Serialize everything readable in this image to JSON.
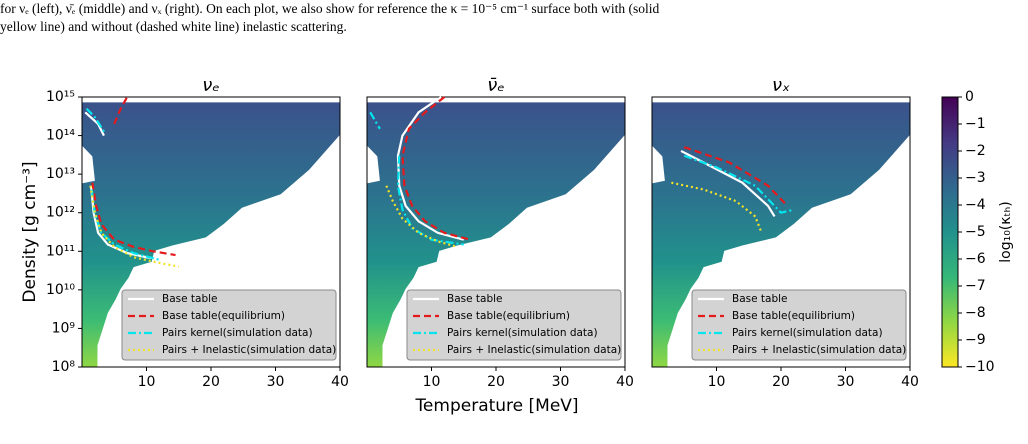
{
  "caption": [
    "for νₑ (left), ν̄ₑ (middle) and νₓ (right). On each plot, we also show for reference the κ = 10⁻⁵ cm⁻¹ surface both with (solid",
    "yellow line) and without (dashed white line) inelastic scattering."
  ],
  "figure": {
    "xlabel": "Temperature [MeV]",
    "ylabel": "Density [g cm⁻³]",
    "colorbar": {
      "label": "log₁₀(κₜₕ)",
      "lim": [
        -10,
        0
      ],
      "ticks": [
        0,
        {
          "value": -1,
          "label": "−1"
        },
        {
          "value": -2,
          "label": "−2"
        },
        {
          "value": -3,
          "label": "−3"
        },
        {
          "value": -4,
          "label": "−4"
        },
        {
          "value": -5,
          "label": "−5"
        },
        {
          "value": -6,
          "label": "−6"
        },
        {
          "value": -7,
          "label": "−7"
        },
        {
          "value": -8,
          "label": "−8"
        },
        {
          "value": -9,
          "label": "−9"
        },
        {
          "value": -10,
          "label": "−10"
        }
      ],
      "colors": [
        "#fde725",
        "#90d743",
        "#35b779",
        "#21918c",
        "#31688e",
        "#443983",
        "#440154"
      ]
    }
  },
  "chart_data": [
    {
      "type": "line",
      "title": "νₑ",
      "xlim": [
        0,
        40
      ],
      "xticks": [
        10,
        20,
        30,
        40
      ],
      "ylim": [
        100000000.0,
        1000000000000000.0
      ],
      "yscale": "log",
      "yticks": [
        {
          "value": 100000000.0,
          "label": "10⁸"
        },
        {
          "value": 1000000000.0,
          "label": "10⁹"
        },
        {
          "value": 10000000000.0,
          "label": "10¹⁰"
        },
        {
          "value": 100000000000.0,
          "label": "10¹¹"
        },
        {
          "value": 1000000000000.0,
          "label": "10¹²"
        },
        {
          "value": 10000000000000.0,
          "label": "10¹³"
        },
        {
          "value": 100000000000000.0,
          "label": "10¹⁴"
        },
        {
          "value": 1000000000000000.0,
          "label": "10¹⁵"
        }
      ],
      "series": [
        {
          "name": "Base table",
          "color": "#ffffff",
          "style": "solid",
          "x": [
            0.5,
            2.5,
            3.4,
            null,
            1.4,
            1.8,
            2.5,
            4,
            7,
            10,
            13
          ],
          "values": [
            400000000000000.0,
            200000000000000.0,
            100000000000000.0,
            null,
            5000000000000.0,
            1000000000000.0,
            300000000000.0,
            150000000000.0,
            90000000000.0,
            70000000000.0,
            60000000000.0
          ]
        },
        {
          "name": "Base table(equilibrium)",
          "color": "#e41a1c",
          "style": "dashed",
          "x": [
            5,
            6,
            7,
            null,
            1.6,
            2.2,
            3,
            5,
            8,
            11,
            14.5
          ],
          "values": [
            200000000000000.0,
            500000000000000.0,
            1000000000000000.0,
            null,
            6000000000000.0,
            1500000000000.0,
            500000000000.0,
            200000000000.0,
            130000000000.0,
            100000000000.0,
            80000000000.0
          ]
        },
        {
          "name": "Pairs kernel(simulation data)",
          "color": "#00e5ee",
          "style": "dashdot",
          "x": [
            0.7,
            2,
            3.5,
            null,
            1.5,
            2,
            3,
            5,
            8,
            12
          ],
          "values": [
            500000000000000.0,
            300000000000000.0,
            120000000000000.0,
            null,
            4000000000000.0,
            900000000000.0,
            300000000000.0,
            150000000000.0,
            90000000000.0,
            60000000000.0
          ]
        },
        {
          "name": "Pairs + Inelastic(simulation data)",
          "color": "#f2e227",
          "style": "dotted",
          "x": [
            1.3,
            2,
            3,
            5,
            8,
            12,
            15
          ],
          "values": [
            5000000000000.0,
            1000000000000.0,
            300000000000.0,
            130000000000.0,
            70000000000.0,
            50000000000.0,
            40000000000.0
          ]
        }
      ]
    },
    {
      "type": "line",
      "title": "ν̄ₑ",
      "xlim": [
        0,
        40
      ],
      "xticks": [
        10,
        20,
        30,
        40
      ],
      "ylim": [
        100000000.0,
        1000000000000000.0
      ],
      "yscale": "log",
      "series": [
        {
          "name": "Base table",
          "color": "#ffffff",
          "style": "solid",
          "x": [
            11.5,
            8,
            5.5,
            4.8,
            5,
            6,
            8,
            11,
            15
          ],
          "values": [
            1000000000000000.0,
            400000000000000.0,
            100000000000000.0,
            30000000000000.0,
            5000000000000.0,
            1500000000000.0,
            600000000000.0,
            300000000000.0,
            200000000000.0
          ]
        },
        {
          "name": "Base table(equilibrium)",
          "color": "#e41a1c",
          "style": "dashed",
          "x": [
            12,
            9,
            6.5,
            5.5,
            5.8,
            7,
            9,
            12,
            16
          ],
          "values": [
            1000000000000000.0,
            400000000000000.0,
            150000000000000.0,
            30000000000000.0,
            5000000000000.0,
            1500000000000.0,
            600000000000.0,
            300000000000.0,
            200000000000.0
          ]
        },
        {
          "name": "Pairs kernel(simulation data)",
          "color": "#00e5ee",
          "style": "dashdot",
          "x": [
            0.5,
            2,
            null,
            5,
            4.8,
            5.5,
            7,
            10,
            15
          ],
          "values": [
            400000000000000.0,
            150000000000000.0,
            null,
            30000000000000.0,
            5000000000000.0,
            1200000000000.0,
            400000000000.0,
            200000000000.0,
            150000000000.0
          ]
        },
        {
          "name": "Pairs + Inelastic(simulation data)",
          "color": "#f2e227",
          "style": "dotted",
          "x": [
            3,
            4,
            5.5,
            8,
            11,
            14
          ],
          "values": [
            5000000000000.0,
            2000000000000.0,
            700000000000.0,
            300000000000.0,
            180000000000.0,
            130000000000.0
          ]
        }
      ]
    },
    {
      "type": "line",
      "title": "νₓ",
      "xlim": [
        0,
        40
      ],
      "xticks": [
        10,
        20,
        30,
        40
      ],
      "ylim": [
        100000000.0,
        1000000000000000.0
      ],
      "yscale": "log",
      "series": [
        {
          "name": "Base table",
          "color": "#ffffff",
          "style": "solid",
          "x": [
            4.5,
            8,
            14,
            18,
            19
          ],
          "values": [
            40000000000000.0,
            20000000000000.0,
            6000000000000.0,
            1500000000000.0,
            800000000000.0
          ]
        },
        {
          "name": "Base table(equilibrium)",
          "color": "#e41a1c",
          "style": "dashed",
          "x": [
            5,
            12,
            18,
            21
          ],
          "values": [
            50000000000000.0,
            20000000000000.0,
            5000000000000.0,
            1500000000000.0
          ]
        },
        {
          "name": "Pairs kernel(simulation data)",
          "color": "#00e5ee",
          "style": "dashdot",
          "x": [
            5,
            10,
            16,
            20,
            22
          ],
          "values": [
            30000000000000.0,
            15000000000000.0,
            5000000000000.0,
            1000000000000.0,
            1200000000000.0
          ]
        },
        {
          "name": "Pairs + Inelastic(simulation data)",
          "color": "#f2e227",
          "style": "dotted",
          "x": [
            3,
            8,
            13,
            16,
            17
          ],
          "values": [
            6000000000000.0,
            4000000000000.0,
            2000000000000.0,
            800000000000.0,
            300000000000.0
          ]
        }
      ]
    }
  ]
}
